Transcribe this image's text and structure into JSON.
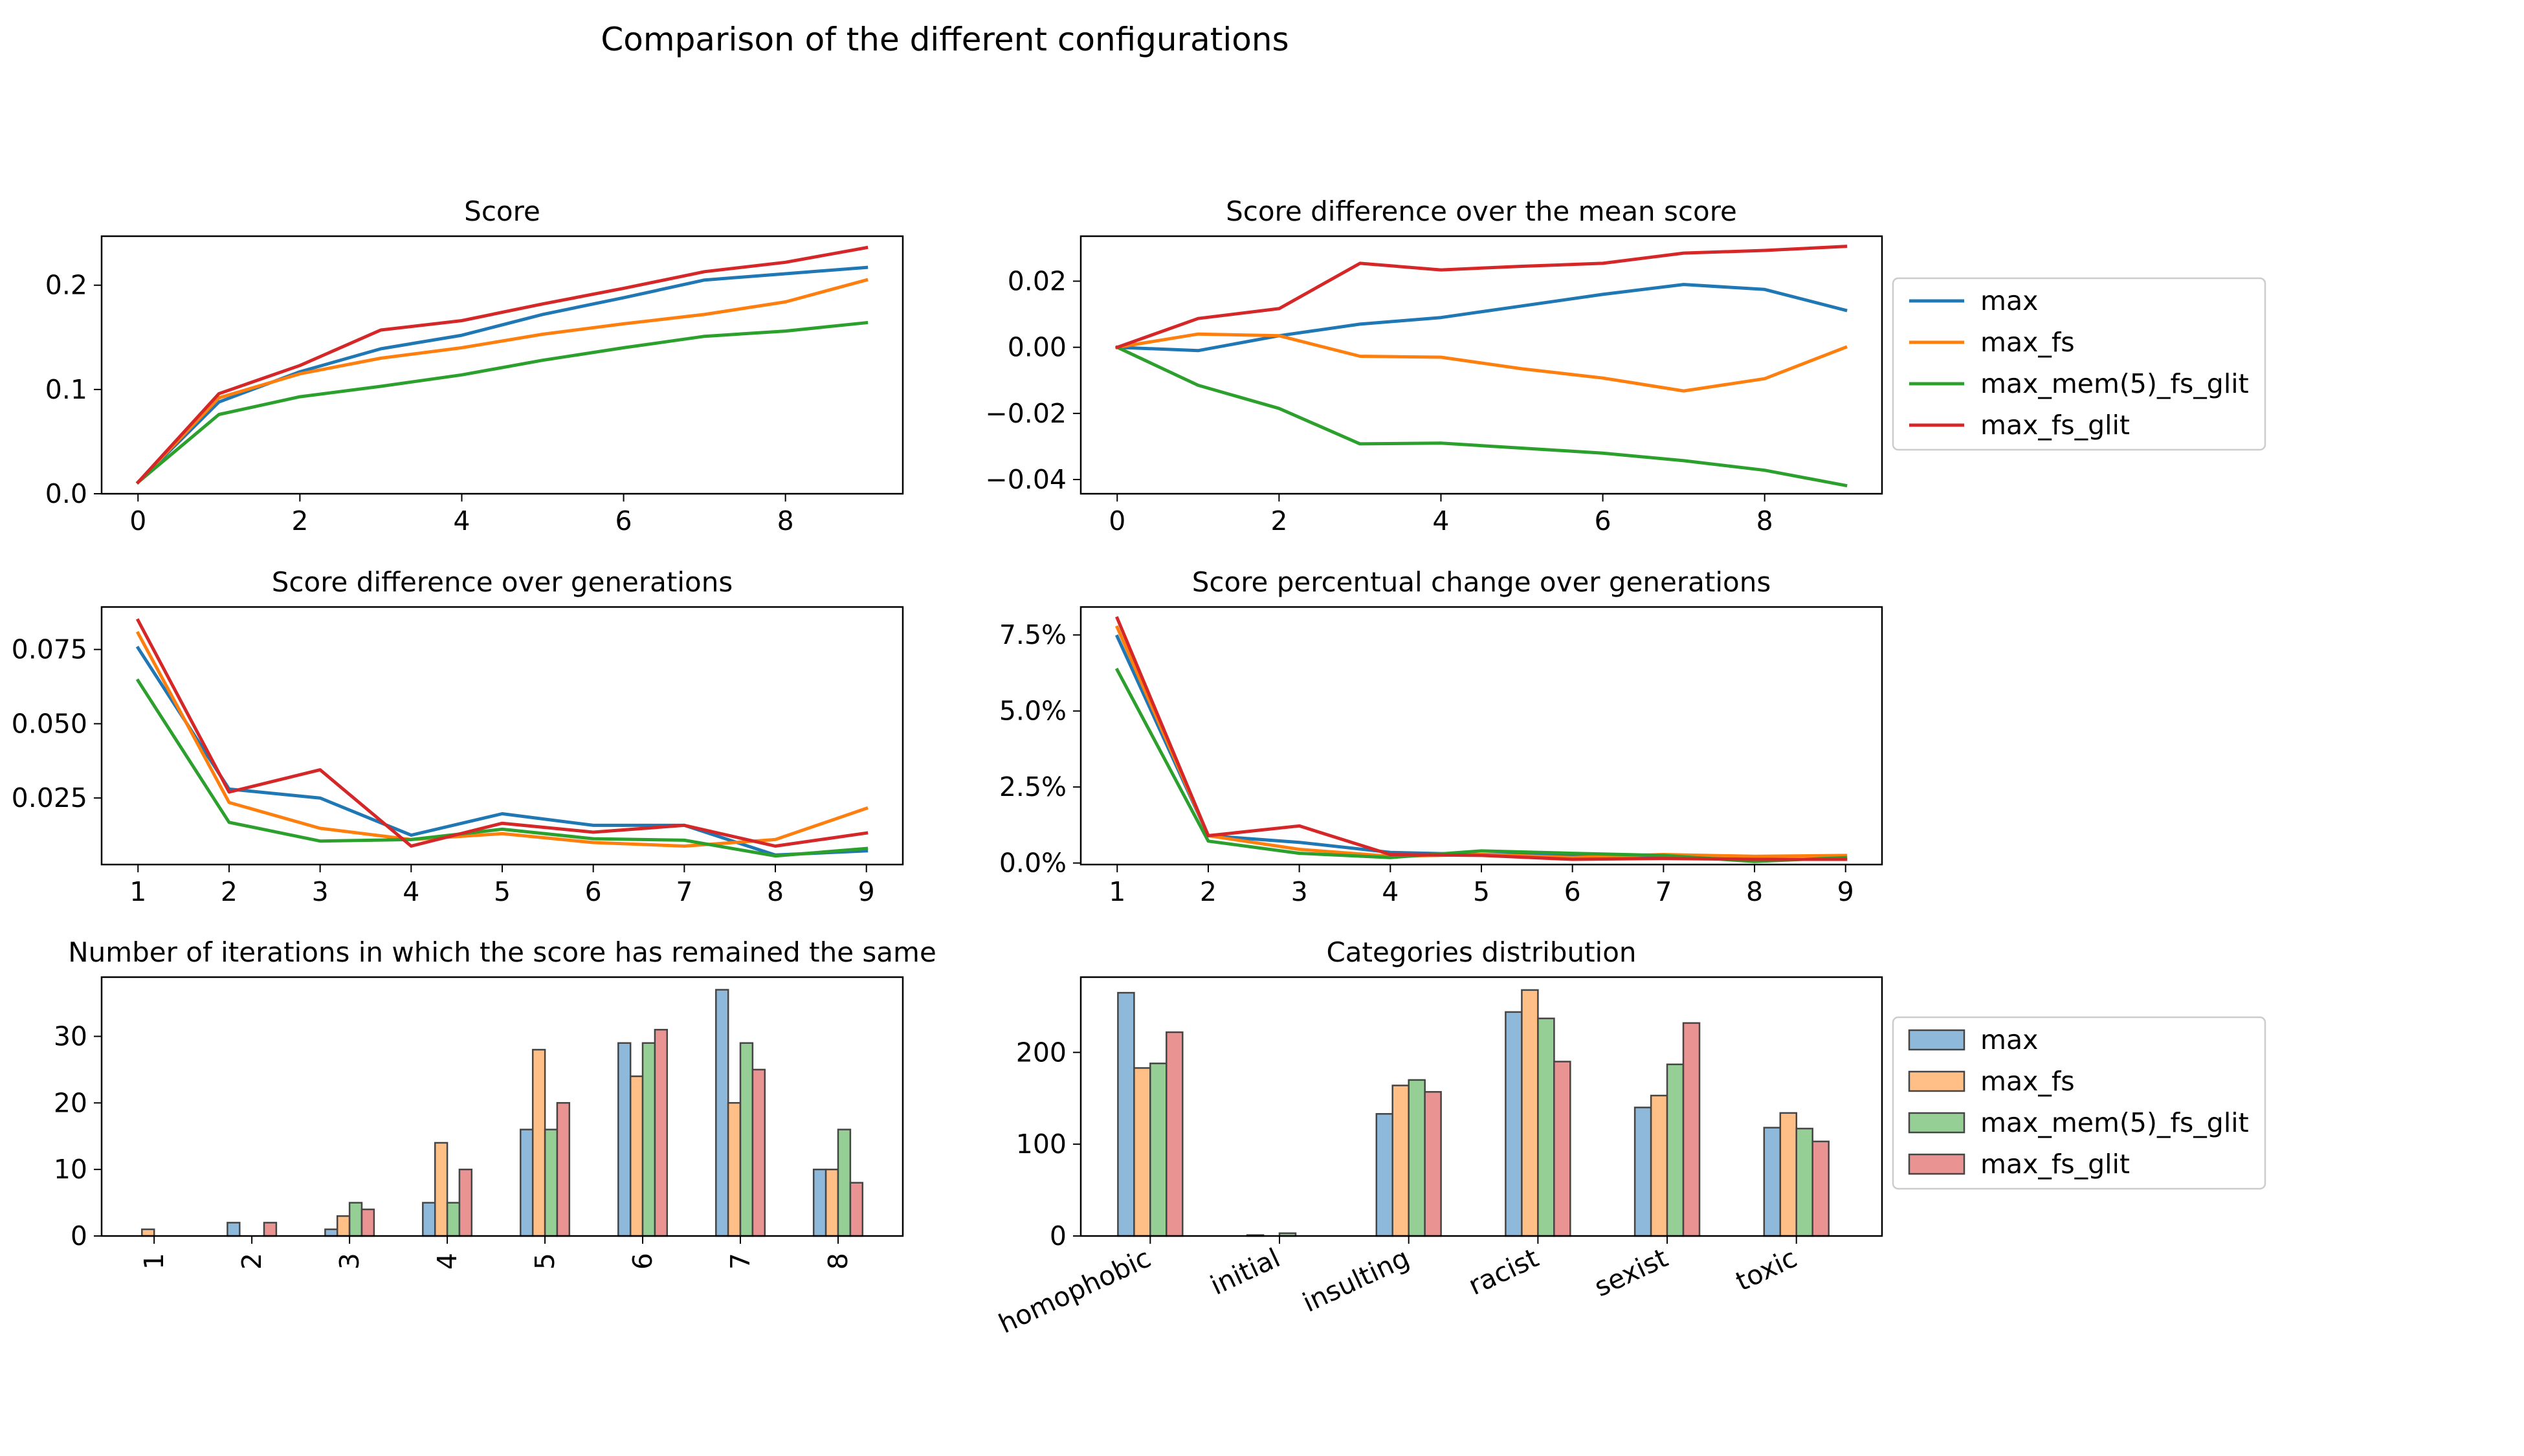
{
  "figure": {
    "title": "Comparison of the different configurations",
    "series_colors": [
      "#1f77b4",
      "#ff7f0e",
      "#2ca02c",
      "#d62728"
    ],
    "legend_entries": [
      "max",
      "max_fs",
      "max_mem(5)_fs_glit",
      "max_fs_glit"
    ]
  },
  "chart_data": [
    {
      "id": "score",
      "type": "line",
      "title": "Score",
      "x": [
        0,
        1,
        2,
        3,
        4,
        5,
        6,
        7,
        8,
        9
      ],
      "xlim": [
        -0.45,
        9.45
      ],
      "ylim": [
        0.0,
        0.247
      ],
      "xticks": [
        0,
        2,
        4,
        6,
        8
      ],
      "yticks": [
        0.0,
        0.1,
        0.2
      ],
      "ytick_labels": [
        "0.0",
        "0.1",
        "0.2"
      ],
      "series": [
        {
          "name": "max",
          "values": [
            0.011,
            0.088,
            0.117,
            0.139,
            0.152,
            0.172,
            0.188,
            0.205,
            0.211,
            0.217
          ]
        },
        {
          "name": "max_fs",
          "values": [
            0.011,
            0.092,
            0.115,
            0.13,
            0.14,
            0.153,
            0.163,
            0.172,
            0.184,
            0.205
          ]
        },
        {
          "name": "max_mem(5)_fs_glit",
          "values": [
            0.011,
            0.076,
            0.093,
            0.103,
            0.114,
            0.128,
            0.14,
            0.151,
            0.156,
            0.164
          ]
        },
        {
          "name": "max_fs_glit",
          "values": [
            0.011,
            0.096,
            0.123,
            0.157,
            0.166,
            0.182,
            0.197,
            0.213,
            0.222,
            0.236
          ]
        }
      ]
    },
    {
      "id": "diff_mean",
      "type": "line",
      "title": "Score difference over the mean score",
      "x": [
        0,
        1,
        2,
        3,
        4,
        5,
        6,
        7,
        8,
        9
      ],
      "xlim": [
        -0.45,
        9.45
      ],
      "ylim": [
        -0.0443,
        0.0336
      ],
      "xticks": [
        0,
        2,
        4,
        6,
        8
      ],
      "yticks": [
        -0.04,
        -0.02,
        0.0,
        0.02
      ],
      "ytick_labels": [
        "−0.04",
        "−0.02",
        "0.00",
        "0.02"
      ],
      "series": [
        {
          "name": "max",
          "values": [
            0.0,
            -0.001,
            0.0035,
            0.007,
            0.009,
            0.0125,
            0.016,
            0.019,
            0.0175,
            0.0112
          ]
        },
        {
          "name": "max_fs",
          "values": [
            0.0,
            0.004,
            0.0035,
            -0.0027,
            -0.003,
            -0.0065,
            -0.0093,
            -0.0132,
            -0.0095,
            0.0
          ]
        },
        {
          "name": "max_mem(5)_fs_glit",
          "values": [
            0.0,
            -0.0115,
            -0.0185,
            -0.0292,
            -0.029,
            -0.0305,
            -0.032,
            -0.0343,
            -0.0372,
            -0.0418
          ]
        },
        {
          "name": "max_fs_glit",
          "values": [
            0.0,
            0.0087,
            0.0117,
            0.0254,
            0.0234,
            0.0245,
            0.0254,
            0.0285,
            0.0293,
            0.0305
          ]
        }
      ]
    },
    {
      "id": "diff_gen",
      "type": "line",
      "title": "Score difference over generations",
      "x": [
        1,
        2,
        3,
        4,
        5,
        6,
        7,
        8,
        9
      ],
      "xlim": [
        0.6,
        9.4
      ],
      "ylim": [
        0.0026,
        0.0893
      ],
      "xticks": [
        1,
        2,
        3,
        4,
        5,
        6,
        7,
        8,
        9
      ],
      "yticks": [
        0.025,
        0.05,
        0.075
      ],
      "ytick_labels": [
        "0.025",
        "0.050",
        "0.075"
      ],
      "series": [
        {
          "name": "max",
          "values": [
            0.0755,
            0.028,
            0.025,
            0.0125,
            0.0197,
            0.0158,
            0.0158,
            0.0058,
            0.0072
          ]
        },
        {
          "name": "max_fs",
          "values": [
            0.0805,
            0.0235,
            0.0148,
            0.011,
            0.013,
            0.01,
            0.0088,
            0.011,
            0.0215
          ]
        },
        {
          "name": "max_mem(5)_fs_glit",
          "values": [
            0.0645,
            0.0168,
            0.0105,
            0.011,
            0.0145,
            0.0113,
            0.0108,
            0.0055,
            0.008
          ]
        },
        {
          "name": "max_fs_glit",
          "values": [
            0.0848,
            0.027,
            0.0345,
            0.0088,
            0.0165,
            0.0135,
            0.0158,
            0.0088,
            0.0132
          ]
        }
      ]
    },
    {
      "id": "pct_gen",
      "type": "line",
      "title": "Score percentual change over generations",
      "x": [
        1,
        2,
        3,
        4,
        5,
        6,
        7,
        8,
        9
      ],
      "xlim": [
        0.6,
        9.4
      ],
      "ylim": [
        -0.0005,
        0.0842
      ],
      "xticks": [
        1,
        2,
        3,
        4,
        5,
        6,
        7,
        8,
        9
      ],
      "yticks": [
        0.0,
        0.025,
        0.05,
        0.075
      ],
      "ytick_labels": [
        "0.0%",
        "2.5%",
        "5.0%",
        "7.5%"
      ],
      "series": [
        {
          "name": "max",
          "values": [
            0.0745,
            0.009,
            0.0068,
            0.0035,
            0.0028,
            0.0025,
            0.0018,
            0.0012,
            0.0012
          ]
        },
        {
          "name": "max_fs",
          "values": [
            0.0775,
            0.009,
            0.0045,
            0.0022,
            0.0028,
            0.0018,
            0.0028,
            0.0022,
            0.0025
          ]
        },
        {
          "name": "max_mem(5)_fs_glit",
          "values": [
            0.0635,
            0.0072,
            0.0032,
            0.0018,
            0.004,
            0.0032,
            0.0025,
            0.0005,
            0.0018
          ]
        },
        {
          "name": "max_fs_glit",
          "values": [
            0.0805,
            0.009,
            0.0122,
            0.0028,
            0.0025,
            0.0012,
            0.0015,
            0.0012,
            0.0012
          ]
        }
      ]
    },
    {
      "id": "iterations",
      "type": "bar",
      "title": "Number of iterations in which the score has remained the same",
      "categories": [
        "1",
        "2",
        "3",
        "4",
        "5",
        "6",
        "7",
        "8"
      ],
      "category_label_rotation": 90,
      "ylim": [
        0,
        38.9
      ],
      "yticks": [
        0,
        10,
        20,
        30
      ],
      "ytick_labels": [
        "0",
        "10",
        "20",
        "30"
      ],
      "series": [
        {
          "name": "max",
          "values": [
            0,
            2,
            1,
            5,
            16,
            29,
            37,
            10
          ]
        },
        {
          "name": "max_fs",
          "values": [
            1,
            0,
            3,
            14,
            28,
            24,
            20,
            10
          ]
        },
        {
          "name": "max_mem(5)_fs_glit",
          "values": [
            0,
            0,
            5,
            5,
            16,
            29,
            29,
            16
          ]
        },
        {
          "name": "max_fs_glit",
          "values": [
            0,
            2,
            4,
            10,
            20,
            31,
            25,
            8
          ]
        }
      ]
    },
    {
      "id": "categories",
      "type": "bar",
      "title": "Categories distribution",
      "categories": [
        "homophobic",
        "initial",
        "insulting",
        "racist",
        "sexist",
        "toxic"
      ],
      "category_label_rotation": 25,
      "ylim": [
        0,
        282
      ],
      "yticks": [
        0,
        100,
        200
      ],
      "ytick_labels": [
        "0",
        "100",
        "200"
      ],
      "series": [
        {
          "name": "max",
          "values": [
            265,
            1,
            133,
            244,
            140,
            118
          ]
        },
        {
          "name": "max_fs",
          "values": [
            183,
            0,
            164,
            268,
            153,
            134
          ]
        },
        {
          "name": "max_mem(5)_fs_glit",
          "values": [
            188,
            3,
            170,
            237,
            187,
            117
          ]
        },
        {
          "name": "max_fs_glit",
          "values": [
            222,
            0,
            157,
            190,
            232,
            103
          ]
        }
      ]
    }
  ]
}
